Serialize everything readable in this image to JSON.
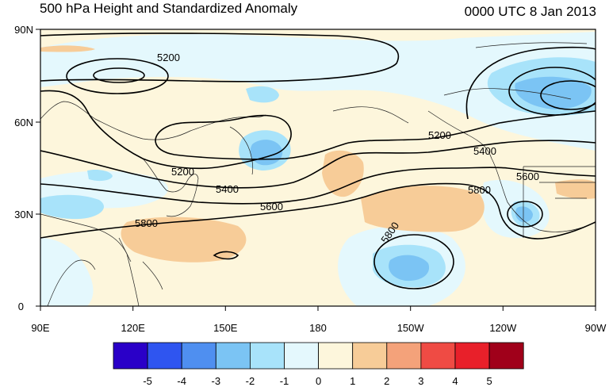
{
  "header": {
    "title": "500 hPa Height and Standardized Anomaly",
    "datetime": "0000 UTC 8 Jan 2013"
  },
  "axes": {
    "lat_ticks": [
      "90N",
      "60N",
      "30N",
      "0"
    ],
    "lon_ticks": [
      "90E",
      "120E",
      "150E",
      "180",
      "150W",
      "120W",
      "90W"
    ]
  },
  "contours": {
    "labels": [
      "5200",
      "5200",
      "5200",
      "5400",
      "5400",
      "5600",
      "5600",
      "5800",
      "5800",
      "5800"
    ]
  },
  "colorbar": {
    "labels": [
      "-5",
      "-4",
      "-3",
      "-2",
      "-1",
      "0",
      "1",
      "2",
      "3",
      "4",
      "5"
    ],
    "colors": [
      "#2a00c8",
      "#2f55f0",
      "#4f8ff0",
      "#7bc4f4",
      "#a8e3fa",
      "#e4f8fd",
      "#fdf6dc",
      "#f7cc98",
      "#f4a27a",
      "#ef4b44",
      "#e8202a",
      "#a0001a"
    ]
  }
}
